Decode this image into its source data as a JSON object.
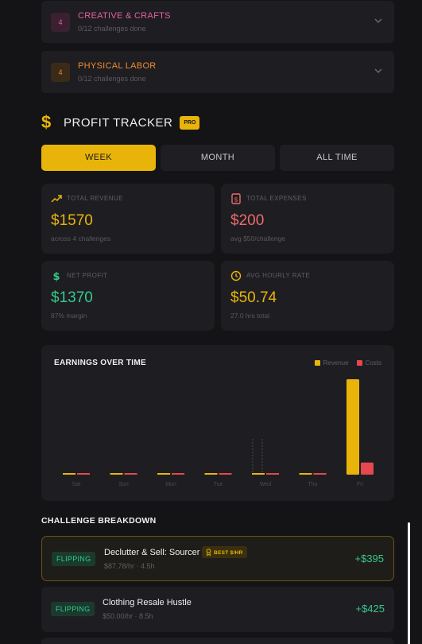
{
  "categories": [
    {
      "badge": "4",
      "title": "CREATIVE & CRAFTS",
      "subtitle": "0/12 challenges done",
      "color": "#e55fa3"
    },
    {
      "badge": "4",
      "title": "PHYSICAL LABOR",
      "subtitle": "0/12 challenges done",
      "color": "#f08a2a"
    }
  ],
  "profit_tracker": {
    "title": "PROFIT TRACKER",
    "badge": "PRO",
    "tabs": [
      "WEEK",
      "MONTH",
      "ALL TIME"
    ],
    "active_tab": "WEEK"
  },
  "stats": {
    "revenue": {
      "label": "TOTAL REVENUE",
      "value": "$1570",
      "sub": "across 4 challenges",
      "color": "#e9b40a",
      "icon": "trending-up-icon"
    },
    "expenses": {
      "label": "TOTAL EXPENSES",
      "value": "$200",
      "sub": "avg $50/challenge",
      "color": "#ec6a6a",
      "icon": "receipt-icon"
    },
    "net": {
      "label": "NET PROFIT",
      "value": "$1370",
      "sub": "87% margin",
      "color": "#35c98b",
      "icon": "dollar-icon"
    },
    "hourly": {
      "label": "AVG HOURLY RATE",
      "value": "$50.74",
      "sub": "27.0 hrs total",
      "color": "#e9b40a",
      "icon": "clock-icon"
    }
  },
  "chart_data": {
    "type": "bar",
    "title": "EARNINGS OVER TIME",
    "categories": [
      "Sat",
      "Sun",
      "Mon",
      "Tue",
      "Wed",
      "Thu",
      "Fri"
    ],
    "series": [
      {
        "name": "Revenue",
        "color": "#e9b40a",
        "values": [
          0,
          0,
          0,
          0,
          0,
          0,
          1570
        ]
      },
      {
        "name": "Costs",
        "color": "#e5484d",
        "values": [
          0,
          0,
          0,
          0,
          0,
          0,
          200
        ]
      }
    ],
    "ylim": [
      0,
      1570
    ],
    "legend": "top-right"
  },
  "breakdown": {
    "title": "CHALLENGE BREAKDOWN",
    "rows": [
      {
        "tag": "FLIPPING",
        "name": "Declutter & Sell: Sourcer",
        "meta": "$87.78/hr · 4.5h",
        "amount": "+$395",
        "badge": "BEST $/HR"
      },
      {
        "tag": "FLIPPING",
        "name": "Clothing Resale Hustle",
        "meta": "$50.00/hr · 8.5h",
        "amount": "+$425"
      }
    ]
  }
}
